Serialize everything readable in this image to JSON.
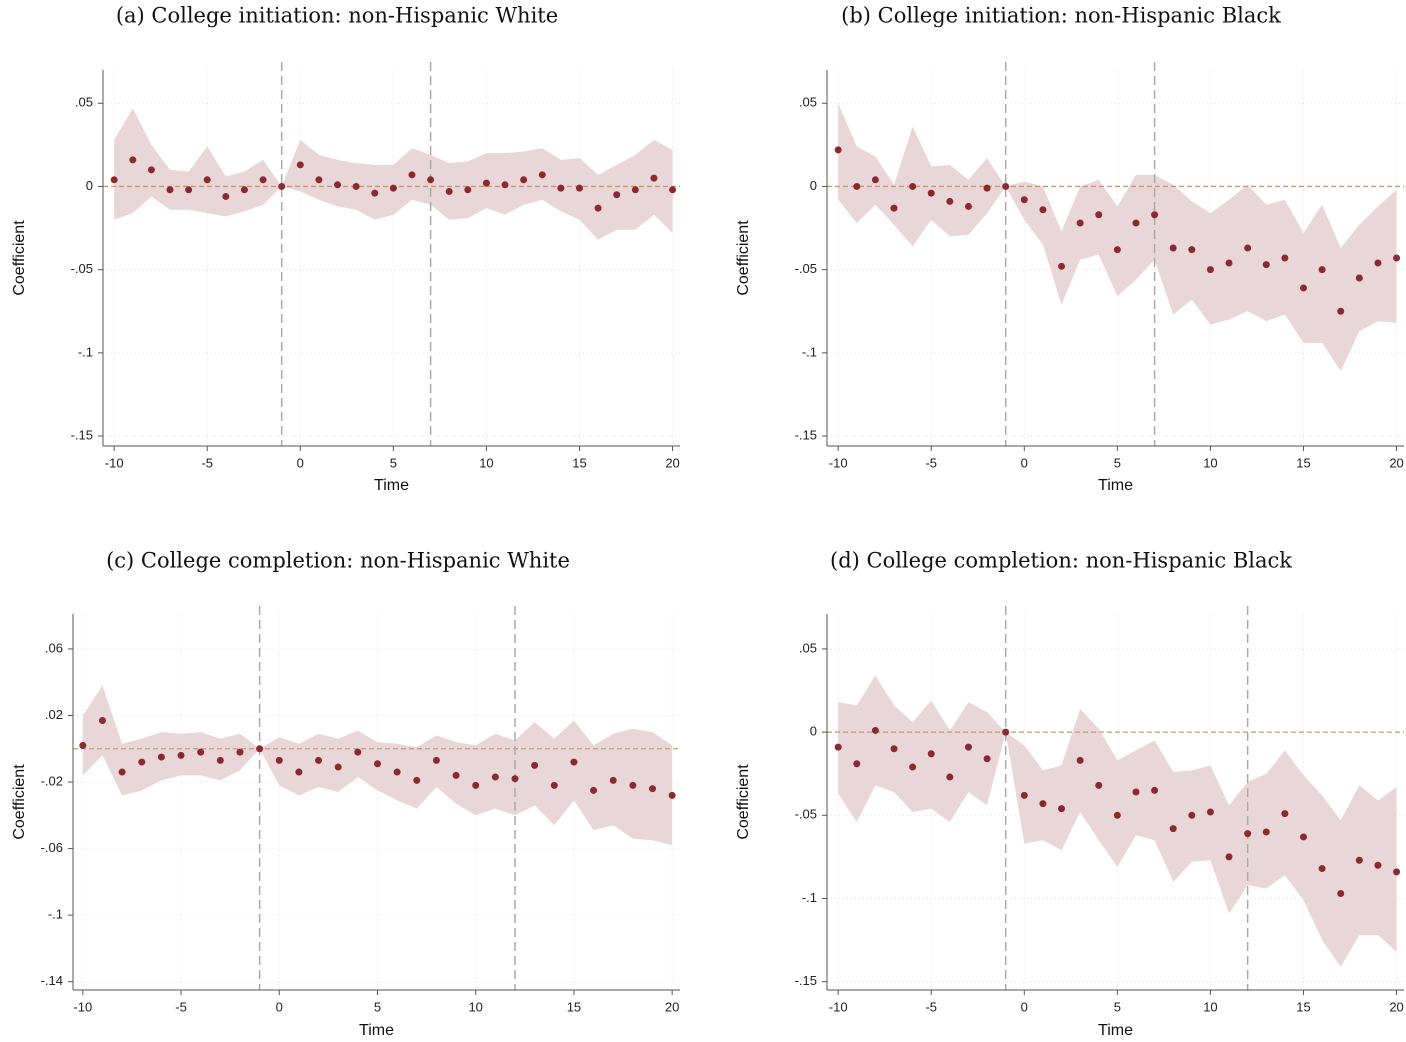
{
  "chart_data": [
    {
      "type": "scatter",
      "title": "(a) College initiation: non-Hispanic White",
      "x_label": "Time",
      "y_label": "Coefficient",
      "x": [
        -10,
        -9,
        -8,
        -7,
        -6,
        -5,
        -4,
        -3,
        -2,
        -1,
        0,
        1,
        2,
        3,
        4,
        5,
        6,
        7,
        8,
        9,
        10,
        11,
        12,
        13,
        14,
        15,
        16,
        17,
        18,
        19,
        20
      ],
      "values": [
        0.004,
        0.016,
        0.01,
        -0.002,
        -0.002,
        0.004,
        -0.006,
        -0.002,
        0.004,
        0,
        0.013,
        0.004,
        0.001,
        0,
        -0.004,
        -0.001,
        0.007,
        0.004,
        -0.003,
        -0.002,
        0.002,
        0.001,
        0.004,
        0.007,
        -0.001,
        -0.001,
        -0.013,
        -0.005,
        -0.002,
        0.005,
        -0.002
      ],
      "upper": [
        0.028,
        0.047,
        0.025,
        0.01,
        0.009,
        0.024,
        0.006,
        0.009,
        0.016,
        0,
        0.028,
        0.019,
        0.016,
        0.014,
        0.013,
        0.013,
        0.023,
        0.019,
        0.014,
        0.015,
        0.02,
        0.02,
        0.021,
        0.023,
        0.016,
        0.017,
        0.007,
        0.013,
        0.019,
        0.028,
        0.022
      ],
      "lower": [
        -0.02,
        -0.016,
        -0.006,
        -0.014,
        -0.014,
        -0.016,
        -0.018,
        -0.015,
        -0.011,
        0,
        -0.003,
        -0.008,
        -0.012,
        -0.014,
        -0.02,
        -0.017,
        -0.008,
        -0.011,
        -0.02,
        -0.019,
        -0.013,
        -0.017,
        -0.011,
        -0.008,
        -0.015,
        -0.02,
        -0.032,
        -0.026,
        -0.026,
        -0.017,
        -0.028
      ],
      "color": "#8b2a2e",
      "ci_color": "#e8d6d8",
      "vlines": [
        -1,
        7
      ],
      "hline": 0,
      "xlim": [
        -10.6,
        20.4
      ],
      "xticks": [
        -10,
        -5,
        0,
        5,
        10,
        15,
        20
      ],
      "ylim": [
        -0.156,
        0.07
      ],
      "yticks": [
        {
          "value": 0.05,
          "label": ".05"
        },
        0,
        {
          "value": -0.05,
          "label": "-.05"
        },
        {
          "value": -0.1,
          "label": "-.1"
        },
        {
          "value": -0.15,
          "label": "-.15"
        }
      ],
      "grid": true
    },
    {
      "type": "scatter",
      "title": "(b) College initiation: non-Hispanic Black",
      "x_label": "Time",
      "y_label": "Coefficient",
      "x": [
        -10,
        -9,
        -8,
        -7,
        -6,
        -5,
        -4,
        -3,
        -2,
        -1,
        0,
        1,
        2,
        3,
        4,
        5,
        6,
        7,
        8,
        9,
        10,
        11,
        12,
        13,
        14,
        15,
        16,
        17,
        18,
        19,
        20
      ],
      "values": [
        0.022,
        0,
        0.004,
        -0.013,
        0,
        -0.004,
        -0.009,
        -0.012,
        -0.001,
        0,
        -0.008,
        -0.014,
        -0.048,
        -0.022,
        -0.017,
        -0.038,
        -0.022,
        -0.017,
        -0.037,
        -0.038,
        -0.05,
        -0.046,
        -0.037,
        -0.047,
        -0.043,
        -0.061,
        -0.05,
        -0.075,
        -0.055,
        -0.046,
        -0.043
      ],
      "upper": [
        0.05,
        0.024,
        0.018,
        0.001,
        0.036,
        0.012,
        0.013,
        0.004,
        0.017,
        0,
        0.003,
        0,
        -0.027,
        0,
        0.004,
        -0.012,
        0.007,
        0.007,
        0.001,
        -0.009,
        -0.016,
        -0.008,
        0.001,
        -0.011,
        -0.008,
        -0.028,
        -0.011,
        -0.037,
        -0.023,
        -0.012,
        -0.002
      ],
      "lower": [
        -0.008,
        -0.022,
        -0.011,
        -0.023,
        -0.036,
        -0.02,
        -0.03,
        -0.029,
        -0.016,
        0,
        -0.02,
        -0.035,
        -0.071,
        -0.044,
        -0.041,
        -0.066,
        -0.056,
        -0.044,
        -0.077,
        -0.068,
        -0.083,
        -0.08,
        -0.075,
        -0.081,
        -0.077,
        -0.094,
        -0.094,
        -0.111,
        -0.087,
        -0.081,
        -0.082
      ],
      "color": "#8b2a2e",
      "ci_color": "#e8d6d8",
      "vlines": [
        -1,
        7
      ],
      "hline": 0,
      "xlim": [
        -10.6,
        20.4
      ],
      "xticks": [
        -10,
        -5,
        0,
        5,
        10,
        15,
        20
      ],
      "ylim": [
        -0.156,
        0.07
      ],
      "yticks": [
        {
          "value": 0.05,
          "label": ".05"
        },
        0,
        {
          "value": -0.05,
          "label": "-.05"
        },
        {
          "value": -0.1,
          "label": "-.1"
        },
        {
          "value": -0.15,
          "label": "-.15"
        }
      ],
      "grid": true
    },
    {
      "type": "scatter",
      "title": "(c) College completion: non-Hispanic White",
      "x_label": "Time",
      "y_label": "Coefficient",
      "x": [
        -10,
        -9,
        -8,
        -7,
        -6,
        -5,
        -4,
        -3,
        -2,
        -1,
        0,
        1,
        2,
        3,
        4,
        5,
        6,
        7,
        8,
        9,
        10,
        11,
        12,
        13,
        14,
        15,
        16,
        17,
        18,
        19,
        20
      ],
      "values": [
        0.002,
        0.017,
        -0.014,
        -0.008,
        -0.005,
        -0.004,
        -0.002,
        -0.007,
        -0.002,
        0,
        -0.007,
        -0.014,
        -0.007,
        -0.011,
        -0.002,
        -0.009,
        -0.014,
        -0.019,
        -0.007,
        -0.016,
        -0.022,
        -0.017,
        -0.018,
        -0.01,
        -0.022,
        -0.008,
        -0.025,
        -0.019,
        -0.022,
        -0.024,
        -0.028
      ],
      "upper": [
        0.02,
        0.038,
        0.003,
        0.006,
        0.01,
        0.009,
        0.01,
        0.006,
        0.009,
        0,
        0.007,
        0.003,
        0.009,
        0.006,
        0.011,
        0.004,
        0.003,
        0.001,
        0.008,
        0.004,
        0.002,
        0.009,
        0.005,
        0.016,
        0.006,
        0.017,
        0.002,
        0.009,
        0.012,
        0.01,
        0.002
      ],
      "lower": [
        -0.016,
        -0.004,
        -0.028,
        -0.025,
        -0.019,
        -0.016,
        -0.016,
        -0.019,
        -0.013,
        0,
        -0.022,
        -0.028,
        -0.023,
        -0.026,
        -0.017,
        -0.025,
        -0.031,
        -0.036,
        -0.023,
        -0.033,
        -0.04,
        -0.036,
        -0.04,
        -0.034,
        -0.046,
        -0.031,
        -0.049,
        -0.046,
        -0.054,
        -0.055,
        -0.058
      ],
      "color": "#8b2a2e",
      "ci_color": "#e8d6d8",
      "vlines": [
        -1,
        12
      ],
      "hline": 0,
      "xlim": [
        -10.5,
        20.4
      ],
      "xticks": [
        -10,
        -5,
        0,
        5,
        10,
        15,
        20
      ],
      "ylim": [
        -0.145,
        0.081
      ],
      "yticks": [
        {
          "value": 0.06,
          "label": ".06"
        },
        {
          "value": 0.02,
          "label": ".02"
        },
        {
          "value": -0.02,
          "label": "-.02"
        },
        {
          "value": -0.06,
          "label": "-.06"
        },
        {
          "value": -0.1,
          "label": "-.1"
        },
        {
          "value": -0.14,
          "label": "-.14"
        }
      ],
      "grid": true
    },
    {
      "type": "scatter",
      "title": "(d) College completion: non-Hispanic Black",
      "x_label": "Time",
      "y_label": "Coefficient",
      "x": [
        -10,
        -9,
        -8,
        -7,
        -6,
        -5,
        -4,
        -3,
        -2,
        -1,
        0,
        1,
        2,
        3,
        4,
        5,
        6,
        7,
        8,
        9,
        10,
        11,
        12,
        13,
        14,
        15,
        16,
        17,
        18,
        19,
        20
      ],
      "values": [
        -0.009,
        -0.019,
        0.001,
        -0.01,
        -0.021,
        -0.013,
        -0.027,
        -0.009,
        -0.016,
        0,
        -0.038,
        -0.043,
        -0.046,
        -0.017,
        -0.032,
        -0.05,
        -0.036,
        -0.035,
        -0.058,
        -0.05,
        -0.048,
        -0.075,
        -0.061,
        -0.06,
        -0.049,
        -0.063,
        -0.082,
        -0.097,
        -0.077,
        -0.08,
        -0.084
      ],
      "upper": [
        0.018,
        0.016,
        0.034,
        0.016,
        0.006,
        0.019,
        0.001,
        0.018,
        0.012,
        0,
        -0.008,
        -0.023,
        -0.02,
        0.014,
        0.002,
        -0.017,
        -0.011,
        -0.005,
        -0.024,
        -0.023,
        -0.02,
        -0.044,
        -0.03,
        -0.025,
        -0.011,
        -0.026,
        -0.038,
        -0.053,
        -0.032,
        -0.041,
        -0.033
      ],
      "lower": [
        -0.037,
        -0.054,
        -0.032,
        -0.036,
        -0.048,
        -0.046,
        -0.054,
        -0.036,
        -0.044,
        0,
        -0.067,
        -0.065,
        -0.071,
        -0.048,
        -0.065,
        -0.081,
        -0.062,
        -0.065,
        -0.09,
        -0.078,
        -0.077,
        -0.109,
        -0.092,
        -0.094,
        -0.086,
        -0.101,
        -0.125,
        -0.141,
        -0.122,
        -0.122,
        -0.132
      ],
      "color": "#8b2a2e",
      "ci_color": "#e8d6d8",
      "vlines": [
        -1,
        12
      ],
      "hline": 0,
      "xlim": [
        -10.6,
        20.4
      ],
      "xticks": [
        -10,
        -5,
        0,
        5,
        10,
        15,
        20
      ],
      "ylim": [
        -0.155,
        0.071
      ],
      "yticks": [
        {
          "value": 0.05,
          "label": ".05"
        },
        0,
        {
          "value": -0.05,
          "label": "-.05"
        },
        {
          "value": -0.1,
          "label": "-.1"
        },
        {
          "value": -0.15,
          "label": "-.15"
        }
      ],
      "grid": true
    }
  ]
}
